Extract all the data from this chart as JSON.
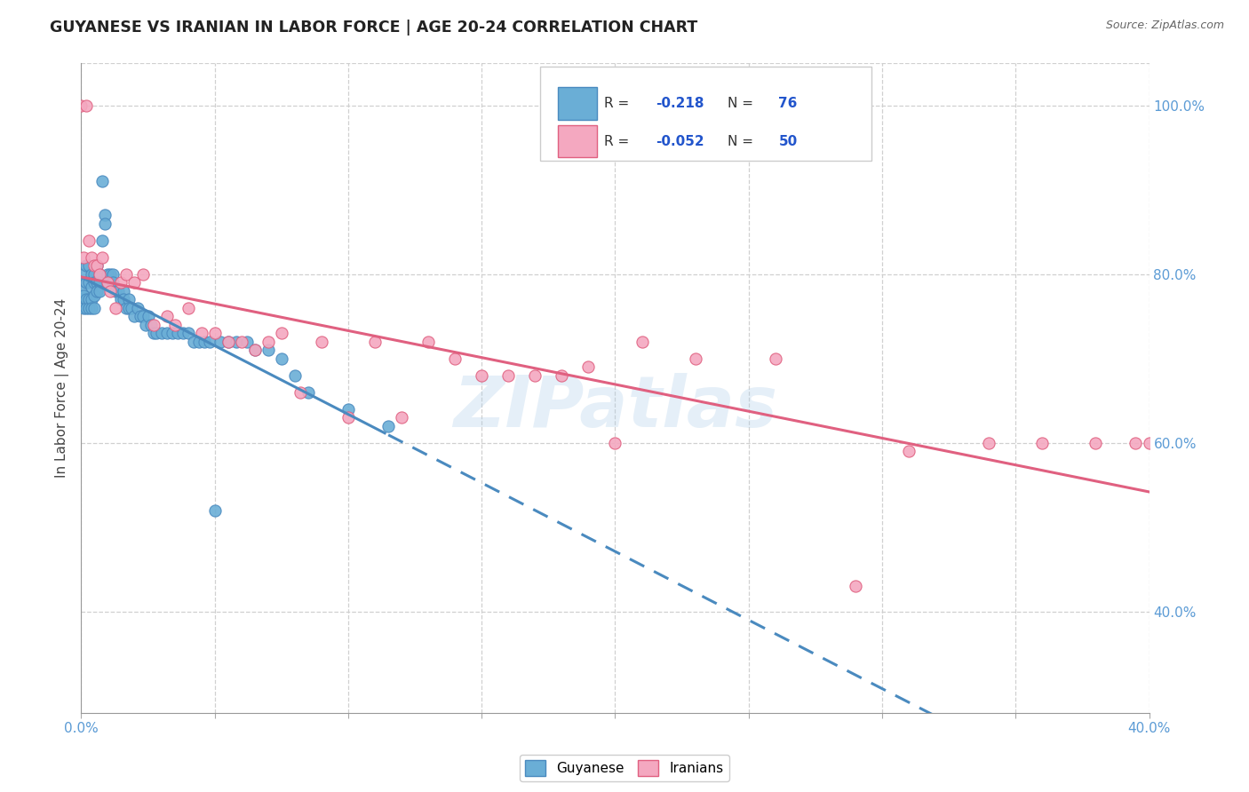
{
  "title": "GUYANESE VS IRANIAN IN LABOR FORCE | AGE 20-24 CORRELATION CHART",
  "source": "Source: ZipAtlas.com",
  "ylabel": "In Labor Force | Age 20-24",
  "blue_color": "#6aaed6",
  "blue_edge": "#4a8abf",
  "pink_color": "#f4a8c0",
  "pink_edge": "#e06080",
  "watermark": "ZIPatlas",
  "R_guyanese": "-0.218",
  "N_guyanese": "76",
  "R_iranian": "-0.052",
  "N_iranian": "50",
  "guyanese_x": [
    0.0,
    0.0,
    0.001,
    0.001,
    0.001,
    0.002,
    0.002,
    0.002,
    0.002,
    0.003,
    0.003,
    0.003,
    0.003,
    0.004,
    0.004,
    0.004,
    0.004,
    0.005,
    0.005,
    0.005,
    0.005,
    0.006,
    0.006,
    0.006,
    0.007,
    0.007,
    0.007,
    0.008,
    0.008,
    0.009,
    0.009,
    0.01,
    0.01,
    0.011,
    0.012,
    0.012,
    0.013,
    0.014,
    0.015,
    0.016,
    0.016,
    0.017,
    0.018,
    0.018,
    0.019,
    0.02,
    0.021,
    0.022,
    0.023,
    0.024,
    0.025,
    0.026,
    0.027,
    0.028,
    0.03,
    0.032,
    0.034,
    0.036,
    0.038,
    0.04,
    0.042,
    0.044,
    0.046,
    0.048,
    0.05,
    0.052,
    0.055,
    0.058,
    0.062,
    0.065,
    0.07,
    0.075,
    0.08,
    0.085,
    0.1,
    0.115
  ],
  "guyanese_y": [
    0.78,
    0.77,
    0.8,
    0.775,
    0.76,
    0.81,
    0.79,
    0.77,
    0.76,
    0.81,
    0.79,
    0.77,
    0.76,
    0.8,
    0.785,
    0.77,
    0.76,
    0.8,
    0.79,
    0.775,
    0.76,
    0.81,
    0.79,
    0.78,
    0.8,
    0.79,
    0.78,
    0.91,
    0.84,
    0.87,
    0.86,
    0.8,
    0.79,
    0.8,
    0.8,
    0.79,
    0.78,
    0.78,
    0.77,
    0.78,
    0.77,
    0.76,
    0.77,
    0.76,
    0.76,
    0.75,
    0.76,
    0.75,
    0.75,
    0.74,
    0.75,
    0.74,
    0.73,
    0.73,
    0.73,
    0.73,
    0.73,
    0.73,
    0.73,
    0.73,
    0.72,
    0.72,
    0.72,
    0.72,
    0.52,
    0.72,
    0.72,
    0.72,
    0.72,
    0.71,
    0.71,
    0.7,
    0.68,
    0.66,
    0.64,
    0.62
  ],
  "iranian_x": [
    0.0,
    0.001,
    0.002,
    0.003,
    0.004,
    0.005,
    0.006,
    0.007,
    0.008,
    0.01,
    0.011,
    0.013,
    0.015,
    0.017,
    0.02,
    0.023,
    0.027,
    0.032,
    0.035,
    0.04,
    0.045,
    0.05,
    0.055,
    0.06,
    0.065,
    0.07,
    0.075,
    0.082,
    0.09,
    0.1,
    0.11,
    0.12,
    0.13,
    0.14,
    0.15,
    0.16,
    0.17,
    0.18,
    0.19,
    0.2,
    0.21,
    0.23,
    0.26,
    0.29,
    0.31,
    0.34,
    0.36,
    0.38,
    0.395,
    0.4
  ],
  "iranian_y": [
    1.0,
    0.82,
    1.0,
    0.84,
    0.82,
    0.81,
    0.81,
    0.8,
    0.82,
    0.79,
    0.78,
    0.76,
    0.79,
    0.8,
    0.79,
    0.8,
    0.74,
    0.75,
    0.74,
    0.76,
    0.73,
    0.73,
    0.72,
    0.72,
    0.71,
    0.72,
    0.73,
    0.66,
    0.72,
    0.63,
    0.72,
    0.63,
    0.72,
    0.7,
    0.68,
    0.68,
    0.68,
    0.68,
    0.69,
    0.6,
    0.72,
    0.7,
    0.7,
    0.43,
    0.59,
    0.6,
    0.6,
    0.6,
    0.6,
    0.6
  ],
  "xlim": [
    0.0,
    0.4
  ],
  "ylim": [
    0.28,
    1.05
  ],
  "right_yticks": [
    1.0,
    0.8,
    0.6,
    0.4
  ],
  "grid_color": "#d0d0d0",
  "tick_color": "#5b9bd5"
}
